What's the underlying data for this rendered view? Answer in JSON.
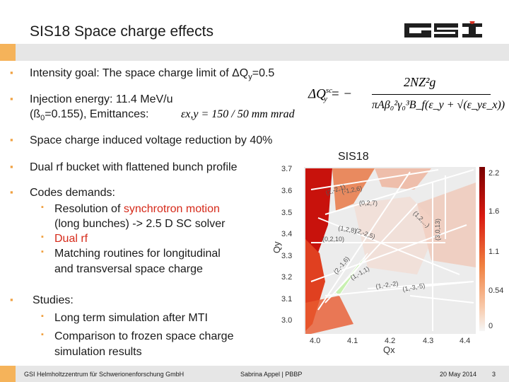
{
  "slide": {
    "title": "SIS18 Space charge effects",
    "page_number": "3"
  },
  "bullets": {
    "b1_text": "Intensity goal: The space charge limit of ΔQ",
    "b1_sub": "y",
    "b1_tail": "=0.5",
    "b2_line1": "Injection energy: 11.4 MeV/u",
    "b2_line2_pre": "(ß",
    "b2_line2_sub": "0",
    "b2_line2_post": "=0.155), Emittances:",
    "b3": "Space charge induced voltage reduction by 40%",
    "b4": "Dual rf bucket with flattened bunch profile",
    "b5": "Codes demands:",
    "b5_s1_pre": "Resolution of ",
    "b5_s1_red": "synchrotron motion",
    "b5_s1_cont": "(long bunches) -> 2.5 D SC solver",
    "b5_s2": "Dual rf",
    "b5_s3_l1": "Matching routines for longitudinal",
    "b5_s3_l2": "and transversal space charge",
    "b6": "Studies:",
    "b6_s1": "Long term simulation after MTI",
    "b6_s2_l1": "Comparison to frozen space charge",
    "b6_s2_l2": "simulation results"
  },
  "formulas": {
    "emittance": "εx,y = 150 / 50 mm mrad",
    "dq_lhs": "ΔQ",
    "dq_num": "2NZ²g",
    "dq_den": "πAβ₀²γ₀³B_f(ε_y + √(ε_yε_x))"
  },
  "plot": {
    "label": "SIS18",
    "x_axis_label": "Qx",
    "y_axis_label": "Qy",
    "x_ticks": [
      "4.0",
      "4.1",
      "4.2",
      "4.3",
      "4.4"
    ],
    "y_ticks": [
      "3.7",
      "3.6",
      "3.5",
      "3.4",
      "3.3",
      "3.2",
      "3.1",
      "3.0"
    ],
    "colorbar_ticks": [
      "2.2",
      "1.6",
      "1.1",
      "0.54",
      "0"
    ],
    "resonances": [
      "(2,-2,1)",
      "(-1,2,6)",
      "(0,2,7)",
      "(1,2,8)",
      "(2,-2,5)",
      "(0,2,10)",
      "(3,0,13)",
      "(1,2,...)",
      "(2,-1,6)",
      "(1,-1,1)",
      "(1,-2,-2)",
      "(1,-3,-5)"
    ],
    "colors": {
      "hot": "#c8120c",
      "mid": "#e8642a",
      "bg": "#ececec",
      "line": "#ffffff"
    }
  },
  "footer": {
    "institution": "GSI Helmholtzzentrum für Schwerionenforschung GmbH",
    "author": "Sabrina Appel | PBBP",
    "date": "20 May 2014"
  },
  "logo_text": "GSI"
}
